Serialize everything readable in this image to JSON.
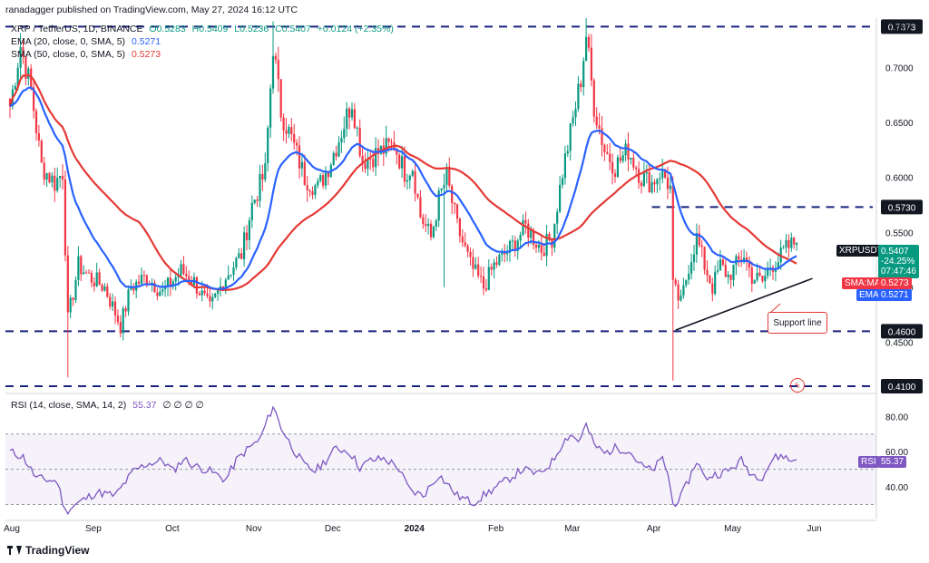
{
  "publisher": "ranadagger published on TradingView.com, May 27, 2024 16:12 UTC",
  "symbol_line": {
    "title": "XRP / TetherUS, 1D, BINANCE",
    "open": "O0.5283",
    "high": "H0.5409",
    "low": "L0.5236",
    "close": "C0.5407",
    "change": "+0.0124 (+2.35%)"
  },
  "ema_line": {
    "label": "EMA (20, close, 0, SMA, 5)",
    "value": "0.5271"
  },
  "sma_line": {
    "label": "SMA (50, close, 0, SMA, 5)",
    "value": "0.5273"
  },
  "rsi_line": {
    "label": "RSI (14, close, SMA, 14, 2)",
    "value": "55.37",
    "extra": "∅ ∅ ∅ ∅"
  },
  "currency": "USDT",
  "price_tag": {
    "symbol": "XRPUSDT",
    "price": "0.5407",
    "change": "-24.25%",
    "countdown": "07:47:46"
  },
  "sma_tag": {
    "label": "SMA:MA",
    "value": "0.5273"
  },
  "ema_tag": {
    "label": "EMA",
    "value": "0.5271"
  },
  "rsi_tag": {
    "label": "RSI",
    "value": "55.37"
  },
  "annotation": "Support line",
  "logo": "TradingView",
  "colors": {
    "up": "#089981",
    "down": "#f23645",
    "ema": "#2962ff",
    "sma": "#e53935",
    "rsi": "#7e57c2",
    "level": "#1a237e",
    "support": "#131722"
  },
  "chart_data": [
    {
      "type": "candlestick",
      "title": "XRP / TetherUS, 1D, BINANCE",
      "ylim": [
        0.405,
        0.745
      ],
      "y_ticks": [
        0.45,
        0.5,
        0.55,
        0.6,
        0.65,
        0.7
      ],
      "y_tick_labels": [
        "0.4500",
        "0.5000",
        "0.5500",
        "0.6000",
        "0.6500",
        "0.7000"
      ],
      "x_tick_labels": [
        "Aug",
        "Sep",
        "Oct",
        "Nov",
        "Dec",
        "2024",
        "Feb",
        "Mar",
        "Apr",
        "May",
        "Jun"
      ],
      "x_ticks_day": [
        0,
        31,
        61,
        92,
        122,
        153,
        184,
        213,
        244,
        274,
        305
      ],
      "horizontal_levels": [
        {
          "value": 0.7373,
          "label": "0.7373"
        },
        {
          "value": 0.573,
          "label": "0.5730"
        },
        {
          "value": 0.46,
          "label": "0.4600"
        },
        {
          "value": 0.41,
          "label": "0.4100"
        }
      ],
      "support_line": {
        "start": {
          "day": 253,
          "value": 0.461
        },
        "end": {
          "day": 305,
          "value": 0.508
        }
      },
      "anchors": [
        [
          0,
          0.665
        ],
        [
          4,
          0.72
        ],
        [
          8,
          0.68
        ],
        [
          12,
          0.61
        ],
        [
          17,
          0.595
        ],
        [
          20,
          0.605
        ],
        [
          22,
          0.47
        ],
        [
          26,
          0.52
        ],
        [
          30,
          0.51
        ],
        [
          36,
          0.5
        ],
        [
          42,
          0.465
        ],
        [
          46,
          0.5
        ],
        [
          52,
          0.51
        ],
        [
          58,
          0.495
        ],
        [
          65,
          0.515
        ],
        [
          70,
          0.505
        ],
        [
          76,
          0.48
        ],
        [
          82,
          0.51
        ],
        [
          88,
          0.53
        ],
        [
          92,
          0.575
        ],
        [
          97,
          0.605
        ],
        [
          100,
          0.72
        ],
        [
          103,
          0.66
        ],
        [
          107,
          0.635
        ],
        [
          112,
          0.6
        ],
        [
          117,
          0.59
        ],
        [
          121,
          0.61
        ],
        [
          125,
          0.635
        ],
        [
          130,
          0.67
        ],
        [
          134,
          0.615
        ],
        [
          138,
          0.62
        ],
        [
          142,
          0.625
        ],
        [
          146,
          0.63
        ],
        [
          150,
          0.605
        ],
        [
          153,
          0.61
        ],
        [
          156,
          0.565
        ],
        [
          160,
          0.545
        ],
        [
          163,
          0.58
        ],
        [
          166,
          0.6
        ],
        [
          170,
          0.555
        ],
        [
          175,
          0.52
        ],
        [
          180,
          0.5
        ],
        [
          184,
          0.52
        ],
        [
          190,
          0.535
        ],
        [
          196,
          0.555
        ],
        [
          202,
          0.535
        ],
        [
          206,
          0.545
        ],
        [
          210,
          0.605
        ],
        [
          213,
          0.64
        ],
        [
          217,
          0.69
        ],
        [
          219,
          0.73
        ],
        [
          222,
          0.665
        ],
        [
          226,
          0.625
        ],
        [
          230,
          0.61
        ],
        [
          235,
          0.625
        ],
        [
          240,
          0.6
        ],
        [
          244,
          0.595
        ],
        [
          247,
          0.605
        ],
        [
          249,
          0.6
        ],
        [
          251,
          0.59
        ],
        [
          252,
          0.5
        ],
        [
          255,
          0.485
        ],
        [
          258,
          0.52
        ],
        [
          261,
          0.545
        ],
        [
          264,
          0.52
        ],
        [
          267,
          0.5
        ],
        [
          270,
          0.52
        ],
        [
          273,
          0.51
        ],
        [
          276,
          0.52
        ],
        [
          279,
          0.53
        ],
        [
          282,
          0.51
        ],
        [
          286,
          0.505
        ],
        [
          289,
          0.52
        ],
        [
          292,
          0.525
        ],
        [
          295,
          0.535
        ],
        [
          298,
          0.54
        ],
        [
          299,
          0.5407
        ]
      ],
      "ema": {
        "name": "EMA (20, close, 0, SMA, 5)",
        "last": 0.5271
      },
      "sma": {
        "name": "SMA (50, close, 0, SMA, 5)",
        "last": 0.5273
      },
      "last_close": 0.5407
    },
    {
      "type": "line",
      "title": "RSI (14, close, SMA, 14, 2)",
      "ylim": [
        22,
        92
      ],
      "y_ticks": [
        40,
        60,
        80
      ],
      "y_tick_labels": [
        "40.00",
        "60.00",
        "80.00"
      ],
      "band": [
        30,
        70
      ],
      "anchors": [
        [
          0,
          60
        ],
        [
          5,
          57
        ],
        [
          10,
          45
        ],
        [
          18,
          43
        ],
        [
          21,
          26
        ],
        [
          26,
          31
        ],
        [
          33,
          37
        ],
        [
          40,
          35
        ],
        [
          47,
          49
        ],
        [
          52,
          53
        ],
        [
          58,
          55
        ],
        [
          62,
          49
        ],
        [
          66,
          56
        ],
        [
          70,
          52
        ],
        [
          76,
          49
        ],
        [
          82,
          44
        ],
        [
          86,
          55
        ],
        [
          90,
          61
        ],
        [
          95,
          67
        ],
        [
          100,
          86
        ],
        [
          103,
          74
        ],
        [
          107,
          63
        ],
        [
          112,
          52
        ],
        [
          116,
          49
        ],
        [
          120,
          55
        ],
        [
          124,
          62
        ],
        [
          129,
          60
        ],
        [
          133,
          51
        ],
        [
          137,
          55
        ],
        [
          142,
          56
        ],
        [
          147,
          52
        ],
        [
          152,
          38
        ],
        [
          157,
          35
        ],
        [
          163,
          47
        ],
        [
          170,
          35
        ],
        [
          176,
          31
        ],
        [
          182,
          37
        ],
        [
          188,
          43
        ],
        [
          195,
          50
        ],
        [
          201,
          47
        ],
        [
          206,
          54
        ],
        [
          210,
          65
        ],
        [
          213,
          70
        ],
        [
          216,
          66
        ],
        [
          219,
          75
        ],
        [
          222,
          64
        ],
        [
          226,
          59
        ],
        [
          230,
          62
        ],
        [
          235,
          61
        ],
        [
          240,
          52
        ],
        [
          244,
          49
        ],
        [
          248,
          56
        ],
        [
          250,
          48
        ],
        [
          252,
          30
        ],
        [
          255,
          34
        ],
        [
          258,
          44
        ],
        [
          261,
          55
        ],
        [
          264,
          45
        ],
        [
          268,
          47
        ],
        [
          273,
          49
        ],
        [
          278,
          55
        ],
        [
          282,
          47
        ],
        [
          286,
          46
        ],
        [
          290,
          56
        ],
        [
          294,
          58
        ],
        [
          296,
          55
        ],
        [
          299,
          55.37
        ]
      ],
      "last": 55.37
    }
  ]
}
